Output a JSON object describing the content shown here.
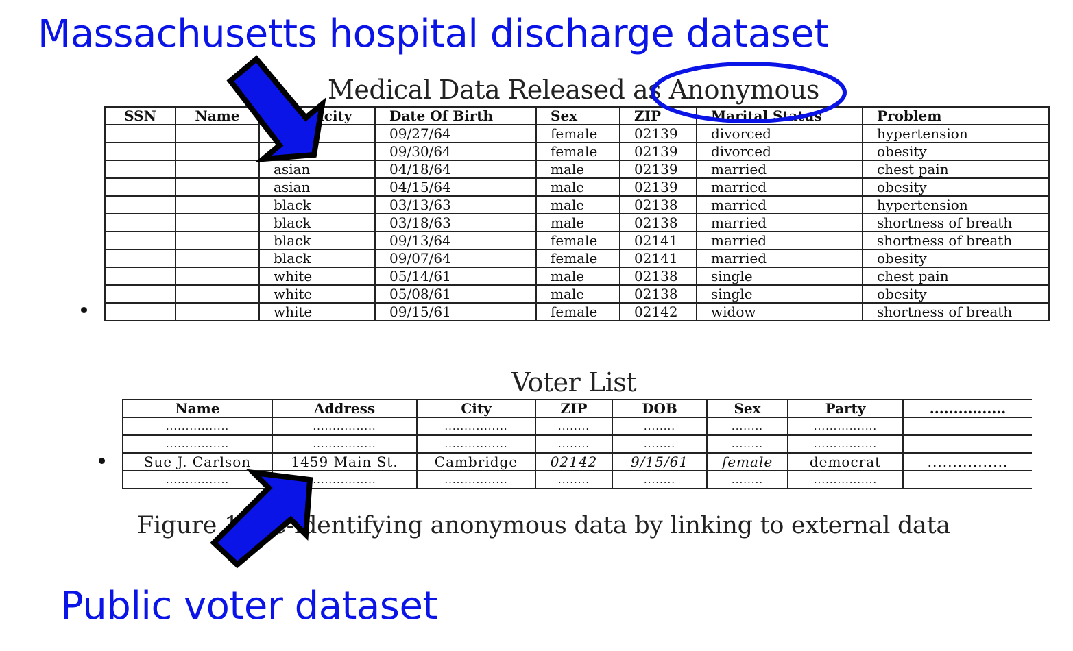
{
  "headings": {
    "top": "Massachusetts hospital discharge dataset",
    "bottom": "Public voter dataset"
  },
  "medical": {
    "caption": "Medical Data Released as Anonymous",
    "columns": [
      "SSN",
      "Name",
      "Ethnicity",
      "Date Of Birth",
      "Sex",
      "ZIP",
      "Marital Status",
      "Problem"
    ],
    "rows": [
      [
        "",
        "",
        "",
        "09/27/64",
        "female",
        "02139",
        "divorced",
        "hypertension"
      ],
      [
        "",
        "",
        "",
        "09/30/64",
        "female",
        "02139",
        "divorced",
        "obesity"
      ],
      [
        "",
        "",
        "asian",
        "04/18/64",
        "male",
        "02139",
        "married",
        "chest pain"
      ],
      [
        "",
        "",
        "asian",
        "04/15/64",
        "male",
        "02139",
        "married",
        "obesity"
      ],
      [
        "",
        "",
        "black",
        "03/13/63",
        "male",
        "02138",
        "married",
        "hypertension"
      ],
      [
        "",
        "",
        "black",
        "03/18/63",
        "male",
        "02138",
        "married",
        "shortness of breath"
      ],
      [
        "",
        "",
        "black",
        "09/13/64",
        "female",
        "02141",
        "married",
        "shortness of breath"
      ],
      [
        "",
        "",
        "black",
        "09/07/64",
        "female",
        "02141",
        "married",
        "obesity"
      ],
      [
        "",
        "",
        "white",
        "05/14/61",
        "male",
        "02138",
        "single",
        "chest pain"
      ],
      [
        "",
        "",
        "white",
        "05/08/61",
        "male",
        "02138",
        "single",
        "obesity"
      ],
      [
        "",
        "",
        "white",
        "09/15/61",
        "female",
        "02142",
        "widow",
        "shortness of breath"
      ]
    ]
  },
  "voter": {
    "caption": "Voter List",
    "columns": [
      "Name",
      "Address",
      "City",
      "ZIP",
      "DOB",
      "Sex",
      "Party",
      "................"
    ],
    "rows": [
      [
        "................",
        "................",
        "................",
        "........",
        "........",
        "........",
        "................",
        ""
      ],
      [
        "................",
        "................",
        "................",
        "........",
        "........",
        "........",
        "................",
        ""
      ],
      [
        "Sue J. Carlson",
        "1459 Main St.",
        "Cambridge",
        "02142",
        "9/15/61",
        "female",
        "democrat",
        "................"
      ],
      [
        "................",
        "................",
        "................",
        "........",
        "........",
        "........",
        "................",
        ""
      ]
    ]
  },
  "figure_caption": "Figure 1: Re-identifying anonymous data by linking to external data",
  "colors": {
    "accent_blue": "#0a14e6",
    "arrow_fill": "#0a14e6",
    "arrow_outline": "#000000"
  }
}
